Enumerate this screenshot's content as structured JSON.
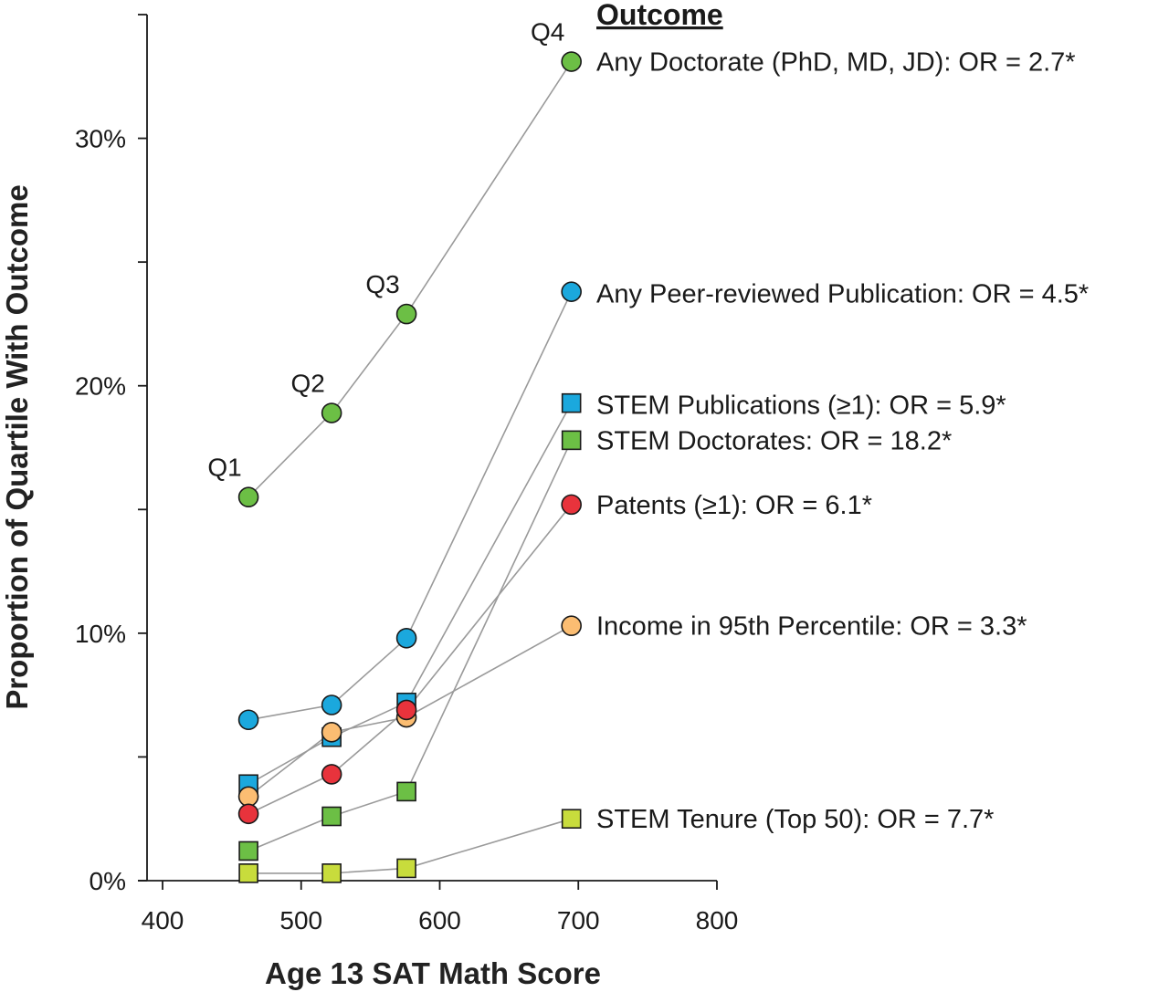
{
  "chart_data": {
    "type": "scatter",
    "title": "",
    "xlabel": "Age 13 SAT Math Score",
    "ylabel": "Proportion of Quartile With Outcome",
    "xlim": [
      400,
      800
    ],
    "ylim": [
      0,
      35
    ],
    "x_ticks": [
      400,
      500,
      600,
      700,
      800
    ],
    "x_tick_labels": [
      "400",
      "500",
      "600",
      "700",
      "800"
    ],
    "y_ticks": [
      0,
      10,
      20,
      30
    ],
    "y_tick_labels": [
      "0%",
      "10%",
      "20%",
      "30%"
    ],
    "y_minor_ticks": [
      5,
      15,
      25,
      35
    ],
    "legend_title": "Outcome",
    "legend_placement": "right",
    "grid": false,
    "quartile_labels": [
      "Q1",
      "Q2",
      "Q3",
      "Q4"
    ],
    "x": [
      462,
      522,
      576,
      695
    ],
    "series": [
      {
        "name": "Any Doctorate  (PhD, MD, JD): OR = 2.7*",
        "marker": "circle",
        "color": "#6cbf45",
        "values": [
          15.5,
          18.9,
          22.9,
          33.1
        ]
      },
      {
        "name": "Any Peer-reviewed Publication: OR = 4.5*",
        "marker": "circle",
        "color": "#1ba8dd",
        "values": [
          6.5,
          7.1,
          9.8,
          23.8
        ]
      },
      {
        "name": "STEM Publications (≥1): OR = 5.9*",
        "marker": "square",
        "color": "#1ba8dd",
        "values": [
          3.9,
          5.8,
          7.2,
          19.3
        ]
      },
      {
        "name": "STEM Doctorates: OR = 18.2*",
        "marker": "square",
        "color": "#6cbf45",
        "values": [
          1.2,
          2.6,
          3.6,
          17.8
        ]
      },
      {
        "name": "Patents (≥1): OR = 6.1*",
        "marker": "circle",
        "color": "#e8333c",
        "values": [
          2.7,
          4.3,
          6.9,
          15.2
        ]
      },
      {
        "name": "Income in 95th Percentile: OR = 3.3*",
        "marker": "circle",
        "color": "#fbbd72",
        "values": [
          3.4,
          6.0,
          6.6,
          10.3
        ]
      },
      {
        "name": "STEM Tenure (Top 50): OR = 7.7*",
        "marker": "square",
        "color": "#c8dc3c",
        "values": [
          0.3,
          0.3,
          0.5,
          2.5
        ]
      }
    ]
  }
}
